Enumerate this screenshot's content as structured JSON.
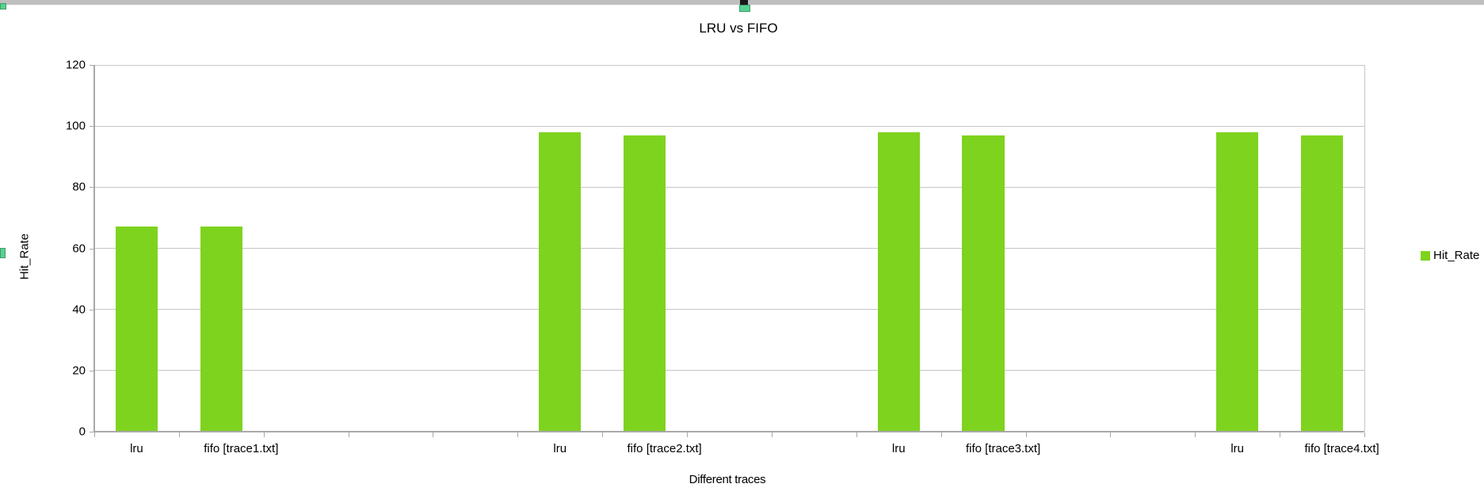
{
  "window": {
    "top_strip_color": "#bfbfbf",
    "anchor_mark_color": "#1a1a1a",
    "selection_handle_color": "#57d28f"
  },
  "chart_data": {
    "type": "bar",
    "title": "LRU vs FIFO",
    "xlabel": "Different traces",
    "ylabel": "Hit_Rate",
    "ylim": [
      0,
      120
    ],
    "yticks": [
      0,
      20,
      40,
      60,
      80,
      100,
      120
    ],
    "grid": "horizontal-on",
    "categories": [
      "lru",
      "fifo [trace1.txt]",
      "",
      "",
      "",
      "lru",
      "fifo [trace2.txt]",
      "",
      "",
      "lru",
      "fifo [trace3.txt]",
      "",
      "",
      "lru",
      "fifo [trace4.txt]"
    ],
    "values": [
      67,
      67,
      null,
      null,
      null,
      98,
      97,
      null,
      null,
      98,
      97,
      null,
      null,
      98,
      97
    ],
    "series": [
      {
        "name": "Hit_Rate",
        "color": "#7ed31e",
        "points": [
          {
            "category": "lru",
            "trace": "trace1.txt",
            "value": 67
          },
          {
            "category": "fifo [trace1.txt]",
            "trace": "trace1.txt",
            "value": 67
          },
          {
            "category": "lru",
            "trace": "trace2.txt",
            "value": 98
          },
          {
            "category": "fifo [trace2.txt]",
            "trace": "trace2.txt",
            "value": 97
          },
          {
            "category": "lru",
            "trace": "trace3.txt",
            "value": 98
          },
          {
            "category": "fifo [trace3.txt]",
            "trace": "trace3.txt",
            "value": 97
          },
          {
            "category": "lru",
            "trace": "trace4.txt",
            "value": 98
          },
          {
            "category": "fifo [trace4.txt]",
            "trace": "trace4.txt",
            "value": 97
          }
        ]
      }
    ],
    "legend": {
      "position": "right",
      "entries": [
        {
          "label": "Hit_Rate",
          "color": "#7ed31e"
        }
      ]
    },
    "colors": {
      "series": "#7ed31e",
      "axis": "#a9a9a9",
      "grid": "#c6c6c6",
      "text": "#000000",
      "background": "#ffffff"
    }
  }
}
